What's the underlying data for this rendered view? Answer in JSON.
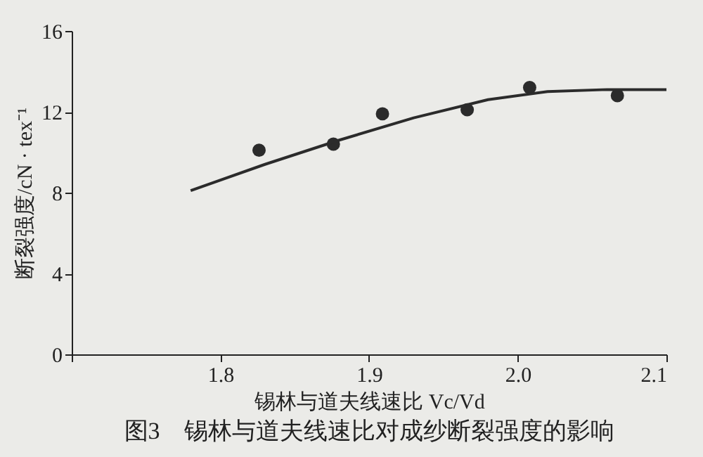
{
  "chart_data": {
    "type": "scatter",
    "title": "图3　锡林与道夫线速比对成纱断裂强度的影响",
    "xlabel": "锡林与道夫线速比 Vc/Vd",
    "ylabel": "断裂强度/cN · tex⁻¹",
    "xlim": [
      1.7,
      2.1
    ],
    "xticks": [
      {
        "value": 1.7,
        "label": null
      },
      1.8,
      1.9,
      {
        "value": 2.0,
        "label": "2.0"
      },
      2.1
    ],
    "ylim": [
      0,
      16
    ],
    "yticks": [
      0,
      4,
      8,
      12,
      16
    ],
    "grid": false,
    "series": [
      {
        "marker": "circle",
        "color": "#2b2b2b",
        "x": [
          1.826,
          1.876,
          1.909,
          1.966,
          2.008,
          2.067
        ],
        "values": [
          10.1,
          10.4,
          11.9,
          12.1,
          13.2,
          12.8
        ]
      },
      {
        "type": "line",
        "marker": "none",
        "color": "#2b2b2b",
        "line_style": "solid",
        "x": [
          1.78,
          1.83,
          1.88,
          1.93,
          1.98,
          2.02,
          2.06,
          2.1
        ],
        "values": [
          8.1,
          9.4,
          10.6,
          11.7,
          12.6,
          13.0,
          13.1,
          13.1
        ]
      }
    ]
  }
}
